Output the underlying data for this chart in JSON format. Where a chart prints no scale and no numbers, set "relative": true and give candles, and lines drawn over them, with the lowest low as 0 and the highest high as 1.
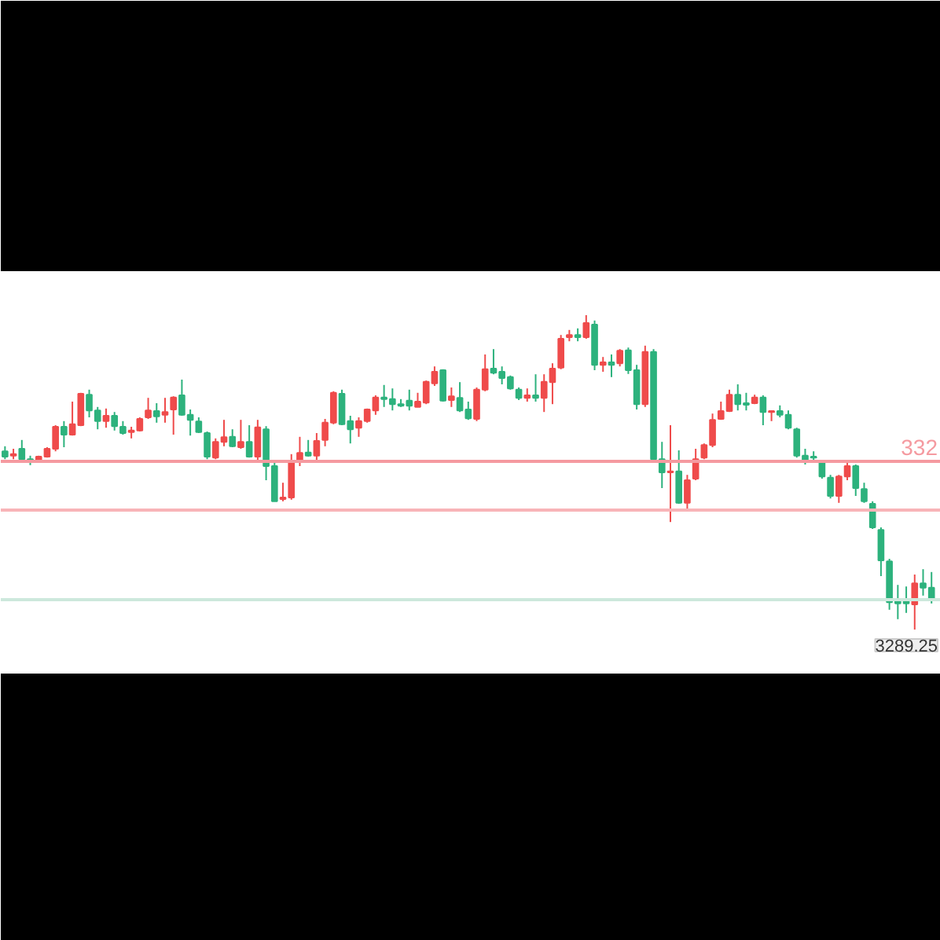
{
  "chart_data": {
    "type": "candlestick",
    "relative": true,
    "categories": [
      null,
      null,
      null,
      null,
      null,
      null,
      null,
      null,
      null,
      null,
      null,
      null,
      null,
      null,
      null,
      null,
      null,
      null,
      null,
      null,
      null,
      null,
      null,
      null,
      null,
      null,
      null,
      null,
      null,
      null,
      null,
      null,
      null,
      null,
      null,
      null,
      null,
      null,
      null,
      null,
      null,
      null,
      null,
      null,
      null,
      null,
      null,
      null,
      null,
      null,
      null,
      null,
      null,
      null,
      null,
      null,
      null,
      null,
      null,
      null,
      null,
      null,
      null,
      null,
      null,
      null,
      null,
      null,
      null,
      null,
      null,
      null,
      null,
      null,
      null,
      null,
      null,
      null,
      null,
      null,
      null,
      null,
      null,
      null,
      null,
      null,
      null,
      null,
      null,
      null,
      null,
      null,
      null,
      null,
      null,
      null,
      null,
      null,
      null,
      null,
      null,
      null,
      null,
      null,
      null,
      null,
      null,
      null,
      null,
      null,
      null
    ],
    "ohlc": [
      [
        0.567,
        0.583,
        0.542,
        0.55
      ],
      [
        0.553,
        0.575,
        0.542,
        0.558
      ],
      [
        0.575,
        0.603,
        0.533,
        0.542
      ],
      [
        0.542,
        0.553,
        0.523,
        0.533
      ],
      [
        0.533,
        0.553,
        0.53,
        0.55
      ],
      [
        0.55,
        0.58,
        0.547,
        0.575
      ],
      [
        0.575,
        0.65,
        0.567,
        0.645
      ],
      [
        0.645,
        0.663,
        0.58,
        0.62
      ],
      [
        0.62,
        0.725,
        0.617,
        0.653
      ],
      [
        0.65,
        0.753,
        0.647,
        0.75
      ],
      [
        0.747,
        0.763,
        0.675,
        0.697
      ],
      [
        0.697,
        0.708,
        0.637,
        0.663
      ],
      [
        0.663,
        0.703,
        0.642,
        0.68
      ],
      [
        0.68,
        0.692,
        0.633,
        0.647
      ],
      [
        0.645,
        0.663,
        0.62,
        0.625
      ],
      [
        0.628,
        0.645,
        0.608,
        0.633
      ],
      [
        0.633,
        0.675,
        0.63,
        0.67
      ],
      [
        0.675,
        0.737,
        0.67,
        0.697
      ],
      [
        0.695,
        0.72,
        0.658,
        0.678
      ],
      [
        0.683,
        0.737,
        0.658,
        0.692
      ],
      [
        0.7,
        0.742,
        0.62,
        0.738
      ],
      [
        0.745,
        0.795,
        0.68,
        0.683
      ],
      [
        0.683,
        0.7,
        0.617,
        0.667
      ],
      [
        0.662,
        0.675,
        0.625,
        0.628
      ],
      [
        0.625,
        0.63,
        0.542,
        0.55
      ],
      [
        0.547,
        0.608,
        0.542,
        0.597
      ],
      [
        0.597,
        0.667,
        0.583,
        0.612
      ],
      [
        0.613,
        0.637,
        0.58,
        0.583
      ],
      [
        0.58,
        0.667,
        0.575,
        0.597
      ],
      [
        0.597,
        0.65,
        0.547,
        0.55
      ],
      [
        0.55,
        0.667,
        0.533,
        0.643
      ],
      [
        0.637,
        0.647,
        0.475,
        0.52
      ],
      [
        0.52,
        0.537,
        0.408,
        0.408
      ],
      [
        0.415,
        0.467,
        0.408,
        0.42
      ],
      [
        0.42,
        0.558,
        0.413,
        0.537
      ],
      [
        0.537,
        0.613,
        0.52,
        0.562
      ],
      [
        0.563,
        0.603,
        0.55,
        0.553
      ],
      [
        0.553,
        0.625,
        0.537,
        0.6
      ],
      [
        0.603,
        0.67,
        0.583,
        0.658
      ],
      [
        0.658,
        0.758,
        0.653,
        0.753
      ],
      [
        0.75,
        0.763,
        0.65,
        0.653
      ],
      [
        0.663,
        0.68,
        0.592,
        0.637
      ],
      [
        0.642,
        0.675,
        0.613,
        0.663
      ],
      [
        0.663,
        0.703,
        0.658,
        0.7
      ],
      [
        0.697,
        0.745,
        0.683,
        0.738
      ],
      [
        0.738,
        0.778,
        0.708,
        0.733
      ],
      [
        0.733,
        0.767,
        0.697,
        0.717
      ],
      [
        0.717,
        0.733,
        0.708,
        0.712
      ],
      [
        0.728,
        0.763,
        0.697,
        0.712
      ],
      [
        0.708,
        0.753,
        0.708,
        0.725
      ],
      [
        0.722,
        0.792,
        0.717,
        0.788
      ],
      [
        0.783,
        0.837,
        0.775,
        0.82
      ],
      [
        0.825,
        0.828,
        0.725,
        0.728
      ],
      [
        0.73,
        0.77,
        0.708,
        0.742
      ],
      [
        0.737,
        0.787,
        0.692,
        0.697
      ],
      [
        0.7,
        0.725,
        0.667,
        0.672
      ],
      [
        0.67,
        0.77,
        0.663,
        0.763
      ],
      [
        0.763,
        0.875,
        0.758,
        0.828
      ],
      [
        0.83,
        0.892,
        0.812,
        0.817
      ],
      [
        0.82,
        0.837,
        0.78,
        0.8
      ],
      [
        0.803,
        0.808,
        0.763,
        0.767
      ],
      [
        0.763,
        0.77,
        0.73,
        0.737
      ],
      [
        0.737,
        0.767,
        0.725,
        0.745
      ],
      [
        0.745,
        0.812,
        0.725,
        0.737
      ],
      [
        0.737,
        0.812,
        0.692,
        0.788
      ],
      [
        0.787,
        0.847,
        0.717,
        0.83
      ],
      [
        0.833,
        0.937,
        0.828,
        0.925
      ],
      [
        0.93,
        0.953,
        0.917,
        0.937
      ],
      [
        0.937,
        0.958,
        0.917,
        0.93
      ],
      [
        0.93,
        1,
        0.925,
        0.975
      ],
      [
        0.97,
        0.983,
        0.825,
        0.842
      ],
      [
        0.842,
        0.867,
        0.82,
        0.85
      ],
      [
        0.85,
        0.875,
        0.803,
        0.842
      ],
      [
        0.847,
        0.892,
        0.837,
        0.887
      ],
      [
        0.888,
        0.897,
        0.813,
        0.825
      ],
      [
        0.825,
        0.842,
        0.7,
        0.717
      ],
      [
        0.717,
        0.903,
        0.708,
        0.883
      ],
      [
        0.883,
        0.892,
        0.533,
        0.542
      ],
      [
        0.542,
        0.597,
        0.45,
        0.5
      ],
      [
        0.5,
        0.65,
        0.342,
        0.503
      ],
      [
        0.503,
        0.57,
        0.4,
        0.403
      ],
      [
        0.403,
        0.492,
        0.383,
        0.475
      ],
      [
        0.48,
        0.575,
        0.475,
        0.542
      ],
      [
        0.547,
        0.592,
        0.542,
        0.587
      ],
      [
        0.587,
        0.687,
        0.58,
        0.667
      ],
      [
        0.67,
        0.725,
        0.667,
        0.695
      ],
      [
        0.695,
        0.763,
        0.692,
        0.747
      ],
      [
        0.747,
        0.78,
        0.697,
        0.717
      ],
      [
        0.72,
        0.753,
        0.697,
        0.715
      ],
      [
        0.72,
        0.747,
        0.717,
        0.738
      ],
      [
        0.738,
        0.745,
        0.65,
        0.692
      ],
      [
        0.692,
        0.697,
        0.663,
        0.695
      ],
      [
        0.695,
        0.713,
        0.675,
        0.683
      ],
      [
        0.683,
        0.697,
        0.637,
        0.642
      ],
      [
        0.637,
        0.642,
        0.547,
        0.553
      ],
      [
        0.553,
        0.575,
        0.525,
        0.533
      ],
      [
        0.55,
        0.567,
        0.53,
        0.547
      ],
      [
        0.53,
        0.533,
        0.48,
        0.487
      ],
      [
        0.483,
        0.492,
        0.417,
        0.425
      ],
      [
        0.425,
        0.492,
        0.403,
        0.487
      ],
      [
        0.487,
        0.533,
        0.475,
        0.52
      ],
      [
        0.52,
        0.525,
        0.425,
        0.45
      ],
      [
        0.447,
        0.467,
        0.403,
        0.408
      ],
      [
        0.4,
        0.408,
        0.32,
        0.325
      ],
      [
        0.317,
        0.325,
        0.17,
        0.22
      ],
      [
        0.217,
        0.225,
        0.063,
        0.087
      ],
      [
        0.092,
        0.142,
        0.033,
        0.083
      ],
      [
        0.092,
        0.137,
        0.053,
        0.083
      ],
      [
        0.08,
        0.175,
        0,
        0.147
      ],
      [
        0.147,
        0.192,
        0.108,
        0.133
      ],
      [
        0.133,
        0.183,
        0.083,
        0.1
      ]
    ],
    "colors": [
      "#2db27d",
      "#ef4b4b",
      "#2db27d",
      "#2db27d",
      "#ef4b4b",
      "#ef4b4b",
      "#ef4b4b",
      "#2db27d",
      "#ef4b4b",
      "#ef4b4b",
      "#2db27d",
      "#2db27d",
      "#ef4b4b",
      "#2db27d",
      "#2db27d",
      "#ef4b4b",
      "#ef4b4b",
      "#ef4b4b",
      "#2db27d",
      "#ef4b4b",
      "#ef4b4b",
      "#2db27d",
      "#2db27d",
      "#2db27d",
      "#2db27d",
      "#ef4b4b",
      "#ef4b4b",
      "#2db27d",
      "#ef4b4b",
      "#2db27d",
      "#ef4b4b",
      "#2db27d",
      "#2db27d",
      "#ef4b4b",
      "#ef4b4b",
      "#ef4b4b",
      "#2db27d",
      "#ef4b4b",
      "#ef4b4b",
      "#ef4b4b",
      "#2db27d",
      "#2db27d",
      "#ef4b4b",
      "#ef4b4b",
      "#ef4b4b",
      "#2db27d",
      "#2db27d",
      "#2db27d",
      "#2db27d",
      "#ef4b4b",
      "#ef4b4b",
      "#ef4b4b",
      "#2db27d",
      "#ef4b4b",
      "#2db27d",
      "#2db27d",
      "#ef4b4b",
      "#ef4b4b",
      "#2db27d",
      "#2db27d",
      "#2db27d",
      "#2db27d",
      "#ef4b4b",
      "#2db27d",
      "#ef4b4b",
      "#ef4b4b",
      "#ef4b4b",
      "#ef4b4b",
      "#2db27d",
      "#ef4b4b",
      "#2db27d",
      "#ef4b4b",
      "#2db27d",
      "#ef4b4b",
      "#2db27d",
      "#2db27d",
      "#ef4b4b",
      "#2db27d",
      "#2db27d",
      "#ef4b4b",
      "#2db27d",
      "#ef4b4b",
      "#ef4b4b",
      "#ef4b4b",
      "#ef4b4b",
      "#ef4b4b",
      "#ef4b4b",
      "#2db27d",
      "#2db27d",
      "#ef4b4b",
      "#2db27d",
      "#ef4b4b",
      "#2db27d",
      "#2db27d",
      "#2db27d",
      "#2db27d",
      "#2db27d",
      "#2db27d",
      "#2db27d",
      "#ef4b4b",
      "#ef4b4b",
      "#2db27d",
      "#2db27d",
      "#2db27d",
      "#2db27d",
      "#2db27d",
      "#2db27d",
      "#2db27d",
      "#ef4b4b",
      "#2db27d",
      "#2db27d"
    ],
    "ref_lines": [
      {
        "axis": "y",
        "value": 0.535,
        "color": "#f59aa0",
        "line_style": "solid"
      },
      {
        "axis": "y",
        "value": 0.38,
        "color": "#f8b4b8",
        "line_style": "solid"
      },
      {
        "axis": "y",
        "value": 0.095,
        "color": "#cde8dc",
        "line_style": "solid"
      }
    ],
    "annotations": [
      "3289.25",
      "332"
    ],
    "grid": false
  }
}
